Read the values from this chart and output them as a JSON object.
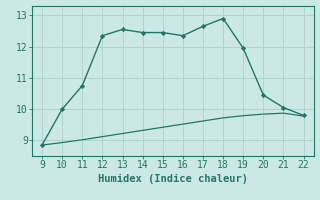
{
  "xlabel": "Humidex (Indice chaleur)",
  "line1_x": [
    9,
    10,
    11,
    12,
    13,
    14,
    15,
    16,
    17,
    18,
    19,
    20,
    21,
    22
  ],
  "line1_y": [
    8.85,
    10.0,
    10.75,
    12.35,
    12.55,
    12.45,
    12.45,
    12.35,
    12.65,
    12.9,
    11.95,
    10.45,
    10.05,
    9.8
  ],
  "line2_x": [
    9,
    10,
    11,
    12,
    13,
    14,
    15,
    16,
    17,
    18,
    19,
    20,
    21,
    22
  ],
  "line2_y": [
    8.85,
    8.93,
    9.02,
    9.12,
    9.22,
    9.32,
    9.42,
    9.52,
    9.62,
    9.72,
    9.79,
    9.84,
    9.87,
    9.78
  ],
  "line_color": "#1a7a6a",
  "bg_color": "#cce8e4",
  "grid_color": "#b0d4d0",
  "spine_color": "#1a7a6a",
  "xlim": [
    8.5,
    22.5
  ],
  "ylim": [
    8.5,
    13.3
  ],
  "xticks": [
    9,
    10,
    11,
    12,
    13,
    14,
    15,
    16,
    17,
    18,
    19,
    20,
    21,
    22
  ],
  "yticks": [
    9,
    10,
    11,
    12,
    13
  ],
  "tick_color": "#1a7a6a",
  "label_fontsize": 7.5,
  "tick_fontsize": 7
}
